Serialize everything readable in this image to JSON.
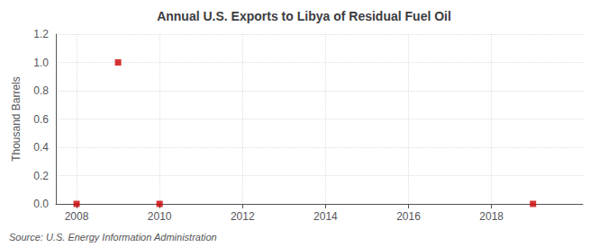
{
  "chart_data": {
    "type": "scatter",
    "title": "Annual U.S. Exports to Libya of Residual Fuel Oil",
    "ylabel": "Thousand Barrels",
    "annotation": "Source: U.S. Energy Information Administration",
    "x": [
      2008,
      2009,
      2010,
      2019
    ],
    "values": [
      0.0,
      1.0,
      0.0,
      0.0
    ],
    "color": "#cc0000",
    "marker": "square",
    "xlim": [
      2007.5,
      2020.2
    ],
    "xticks": [
      2008,
      2010,
      2012,
      2014,
      2016,
      2018
    ],
    "ylim": [
      0.0,
      1.2
    ],
    "yticks": [
      {
        "value": 0.0,
        "label": "0.0"
      },
      0.2,
      0.4,
      0.6,
      0.8,
      {
        "value": 1.0,
        "label": "1.0"
      },
      1.2
    ],
    "grid": true
  }
}
